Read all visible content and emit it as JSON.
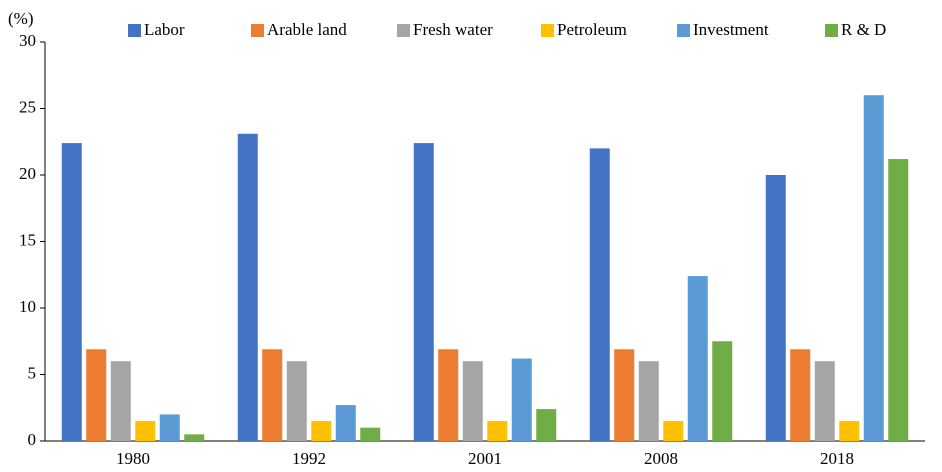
{
  "chart_data": {
    "type": "bar",
    "y_label": "(%)",
    "categories": [
      "1980",
      "1992",
      "2001",
      "2008",
      "2018"
    ],
    "series": [
      {
        "name": "Labor",
        "color": "#4472c4",
        "values": [
          22.4,
          23.1,
          22.4,
          22.0,
          20.0
        ]
      },
      {
        "name": "Arable land",
        "color": "#ed7d31",
        "values": [
          6.9,
          6.9,
          6.9,
          6.9,
          6.9
        ]
      },
      {
        "name": "Fresh water",
        "color": "#a5a5a5",
        "values": [
          6.0,
          6.0,
          6.0,
          6.0,
          6.0
        ]
      },
      {
        "name": "Petroleum",
        "color": "#ffc000",
        "values": [
          1.5,
          1.5,
          1.5,
          1.5,
          1.5
        ]
      },
      {
        "name": "Investment",
        "color": "#5b9bd5",
        "values": [
          2.0,
          2.7,
          6.2,
          12.4,
          26.0
        ]
      },
      {
        "name": "R & D",
        "color": "#70ad47",
        "values": [
          0.5,
          1.0,
          2.4,
          7.5,
          21.2
        ]
      }
    ],
    "ylim": [
      0,
      30
    ],
    "yticks": [
      0,
      5,
      10,
      15,
      20,
      25,
      30
    ],
    "grid": false
  }
}
